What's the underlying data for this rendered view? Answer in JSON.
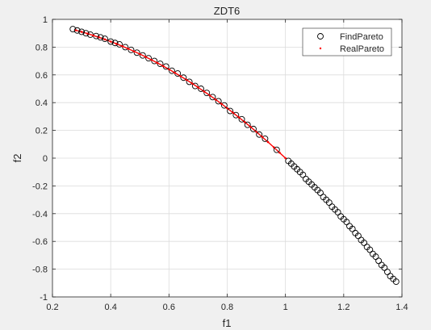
{
  "chart_data": {
    "type": "scatter",
    "title": "ZDT6",
    "xlabel": "f1",
    "ylabel": "f2",
    "xlim": [
      0.2,
      1.4
    ],
    "ylim": [
      -1,
      1
    ],
    "xticks": [
      "0.2",
      "0.4",
      "0.6",
      "0.8",
      "1",
      "1.2",
      "1.4"
    ],
    "yticks": [
      "-1",
      "-0.8",
      "-0.6",
      "-0.4",
      "-0.2",
      "0",
      "0.2",
      "0.4",
      "0.6",
      "0.8",
      "1"
    ],
    "grid": true,
    "legend_position": "top-right",
    "series": [
      {
        "name": "FindPareto",
        "marker": "circle-open",
        "color": "#000000",
        "x": [
          0.27,
          0.285,
          0.3,
          0.315,
          0.33,
          0.35,
          0.365,
          0.38,
          0.4,
          0.415,
          0.43,
          0.45,
          0.47,
          0.49,
          0.51,
          0.53,
          0.55,
          0.57,
          0.59,
          0.61,
          0.63,
          0.65,
          0.67,
          0.69,
          0.71,
          0.73,
          0.75,
          0.77,
          0.79,
          0.81,
          0.83,
          0.85,
          0.87,
          0.89,
          0.91,
          0.93,
          0.97,
          1.01,
          1.02,
          1.03,
          1.04,
          1.05,
          1.06,
          1.07,
          1.08,
          1.09,
          1.1,
          1.11,
          1.12,
          1.13,
          1.14,
          1.15,
          1.16,
          1.17,
          1.18,
          1.19,
          1.2,
          1.21,
          1.22,
          1.23,
          1.24,
          1.25,
          1.26,
          1.27,
          1.28,
          1.29,
          1.3,
          1.31,
          1.32,
          1.33,
          1.34,
          1.35,
          1.36,
          1.37,
          1.38
        ],
        "y": [
          0.93,
          0.92,
          0.91,
          0.9,
          0.89,
          0.88,
          0.87,
          0.86,
          0.84,
          0.83,
          0.82,
          0.8,
          0.78,
          0.76,
          0.74,
          0.72,
          0.7,
          0.68,
          0.66,
          0.63,
          0.61,
          0.58,
          0.55,
          0.52,
          0.5,
          0.47,
          0.44,
          0.41,
          0.38,
          0.34,
          0.31,
          0.28,
          0.24,
          0.21,
          0.17,
          0.14,
          0.06,
          -0.02,
          -0.04,
          -0.06,
          -0.08,
          -0.1,
          -0.12,
          -0.15,
          -0.17,
          -0.19,
          -0.21,
          -0.23,
          -0.25,
          -0.28,
          -0.3,
          -0.32,
          -0.35,
          -0.37,
          -0.39,
          -0.42,
          -0.44,
          -0.46,
          -0.49,
          -0.51,
          -0.54,
          -0.56,
          -0.59,
          -0.61,
          -0.64,
          -0.66,
          -0.69,
          -0.71,
          -0.74,
          -0.77,
          -0.79,
          -0.82,
          -0.85,
          -0.87,
          -0.89
        ]
      },
      {
        "name": "RealPareto",
        "marker": "point",
        "color": "#ff0000",
        "x": [
          0.2807,
          0.3,
          0.32,
          0.34,
          0.36,
          0.38,
          0.4,
          0.42,
          0.44,
          0.46,
          0.48,
          0.5,
          0.52,
          0.54,
          0.56,
          0.58,
          0.6,
          0.62,
          0.64,
          0.66,
          0.68,
          0.7,
          0.72,
          0.74,
          0.76,
          0.78,
          0.8,
          0.82,
          0.84,
          0.86,
          0.88,
          0.9,
          0.92,
          0.94,
          0.96,
          0.98,
          1.0
        ],
        "y": [
          0.9212,
          0.91,
          0.8976,
          0.8844,
          0.8704,
          0.8556,
          0.84,
          0.8236,
          0.8064,
          0.7884,
          0.7696,
          0.75,
          0.7296,
          0.7084,
          0.6864,
          0.6636,
          0.64,
          0.6156,
          0.5904,
          0.5644,
          0.5376,
          0.51,
          0.4816,
          0.4524,
          0.4224,
          0.3916,
          0.36,
          0.3276,
          0.2944,
          0.2604,
          0.2256,
          0.19,
          0.1536,
          0.1164,
          0.0784,
          0.0396,
          0.0
        ]
      }
    ]
  }
}
